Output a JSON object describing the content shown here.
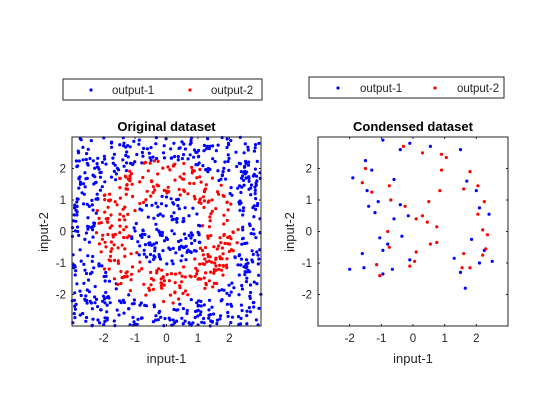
{
  "chart_data": [
    {
      "type": "scatter",
      "title": "Original dataset",
      "xlabel": "input-1",
      "ylabel": "input-2",
      "xlim": [
        -3,
        3
      ],
      "ylim": [
        -3,
        3
      ],
      "xticks": [
        -2,
        -1,
        0,
        1,
        2
      ],
      "yticks": [
        -2,
        -1,
        0,
        1,
        2
      ],
      "grid": false,
      "legend_position": "above",
      "point_count": 1000,
      "series": [
        {
          "name": "output-1",
          "color": "#0000ff",
          "region": "points outside the ring 1.15 < r < 2.3 (r = distance from origin)"
        },
        {
          "name": "output-2",
          "color": "#ff0000",
          "region": "points within the ring 1.15 < r < 2.3"
        }
      ]
    },
    {
      "type": "scatter",
      "title": "Condensed dataset",
      "xlabel": "input-1",
      "ylabel": "input-2",
      "xlim": [
        -3,
        3
      ],
      "ylim": [
        -3,
        3
      ],
      "xticks": [
        -2,
        -1,
        0,
        1,
        2
      ],
      "yticks": [
        -2,
        -1,
        0,
        1,
        2
      ],
      "grid": false,
      "legend_position": "above",
      "series": [
        {
          "name": "output-1",
          "color": "#0000ff",
          "points": [
            [
              -0.95,
              2.9
            ],
            [
              -0.1,
              2.8
            ],
            [
              0.55,
              2.7
            ],
            [
              1.5,
              2.6
            ],
            [
              -0.4,
              2.6
            ],
            [
              -1.5,
              2.25
            ],
            [
              -1.3,
              1.95
            ],
            [
              -1.9,
              1.7
            ],
            [
              -0.6,
              1.65
            ],
            [
              1.7,
              1.6
            ],
            [
              -1.45,
              1.3
            ],
            [
              2.0,
              1.3
            ],
            [
              -1.1,
              0.95
            ],
            [
              -1.4,
              0.8
            ],
            [
              -0.4,
              0.85
            ],
            [
              2.1,
              0.75
            ],
            [
              -1.2,
              0.6
            ],
            [
              -0.6,
              0.4
            ],
            [
              2.4,
              0.55
            ],
            [
              -0.15,
              0.5
            ],
            [
              -0.35,
              -0.15
            ],
            [
              -1.05,
              -0.2
            ],
            [
              1.85,
              -0.25
            ],
            [
              -0.8,
              -0.4
            ],
            [
              -1.6,
              -0.7
            ],
            [
              -0.95,
              -0.6
            ],
            [
              2.25,
              -0.6
            ],
            [
              1.3,
              -0.85
            ],
            [
              -0.1,
              -0.9
            ],
            [
              2.1,
              -1.0
            ],
            [
              -2.0,
              -1.2
            ],
            [
              -1.55,
              -1.15
            ],
            [
              -0.65,
              -1.2
            ],
            [
              2.5,
              -0.95
            ],
            [
              1.5,
              -1.3
            ],
            [
              -0.95,
              -1.35
            ],
            [
              1.65,
              -1.8
            ]
          ]
        },
        {
          "name": "output-2",
          "color": "#ff0000",
          "points": [
            [
              -0.3,
              2.7
            ],
            [
              0.3,
              2.5
            ],
            [
              0.9,
              2.45
            ],
            [
              1.05,
              2.35
            ],
            [
              -1.5,
              2.0
            ],
            [
              0.9,
              1.95
            ],
            [
              1.8,
              1.9
            ],
            [
              -1.6,
              1.55
            ],
            [
              2.05,
              1.45
            ],
            [
              -0.75,
              1.45
            ],
            [
              1.6,
              1.35
            ],
            [
              -1.3,
              1.25
            ],
            [
              -0.7,
              1.0
            ],
            [
              0.85,
              1.3
            ],
            [
              2.25,
              0.95
            ],
            [
              0.5,
              0.95
            ],
            [
              -0.25,
              0.8
            ],
            [
              2.05,
              0.55
            ],
            [
              0.3,
              0.5
            ],
            [
              0.1,
              0.4
            ],
            [
              -0.8,
              0.0
            ],
            [
              0.45,
              0.3
            ],
            [
              0.75,
              0.15
            ],
            [
              2.2,
              0.05
            ],
            [
              0.55,
              -0.4
            ],
            [
              0.75,
              -0.35
            ],
            [
              -0.75,
              -0.5
            ],
            [
              2.35,
              -0.1
            ],
            [
              1.6,
              -0.7
            ],
            [
              0.1,
              -0.65
            ],
            [
              2.3,
              -0.55
            ],
            [
              0.05,
              -0.95
            ],
            [
              -1.15,
              -1.05
            ],
            [
              2.2,
              -0.75
            ],
            [
              -0.1,
              -1.1
            ],
            [
              1.8,
              -1.15
            ],
            [
              -1.05,
              -1.4
            ],
            [
              1.55,
              -1.15
            ]
          ]
        }
      ]
    }
  ]
}
